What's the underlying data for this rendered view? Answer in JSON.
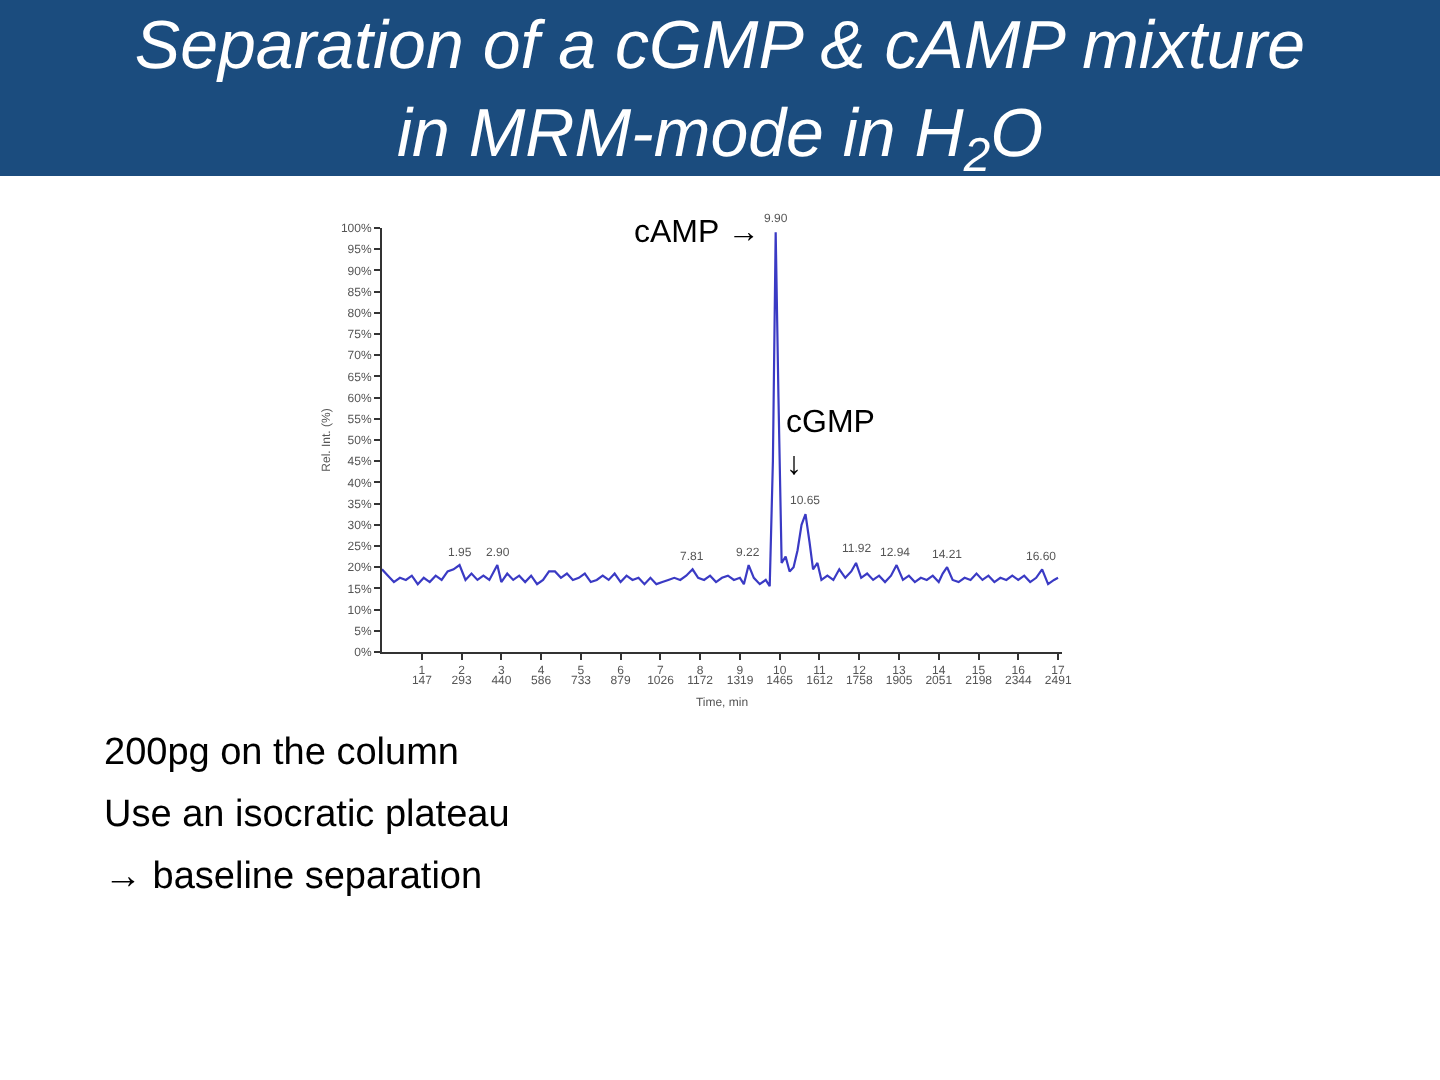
{
  "chart_data": {
    "type": "line",
    "title": "Separation of a cGMP & cAMP mixture\nin MRM-mode in H$_{2}$O",
    "xlabel": "Time, min",
    "ylabel": "Rel. Int. (%)",
    "xlim": [
      0,
      17.1
    ],
    "xticks": [
      1,
      2,
      3,
      4,
      5,
      6,
      7,
      8,
      9,
      10,
      11,
      12,
      13,
      14,
      15,
      16,
      17
    ],
    "x2lim": [
      0,
      2505
    ],
    "x2ticks": [
      147,
      293,
      440,
      586,
      733,
      879,
      1026,
      1172,
      1319,
      1465,
      1612,
      1758,
      1905,
      2051,
      2198,
      2344,
      2491
    ],
    "ylim": [
      0,
      100
    ],
    "yticks": [
      {
        "value": 0,
        "label": "0%"
      },
      {
        "value": 5,
        "label": "5%"
      },
      {
        "value": 10,
        "label": "10%"
      },
      {
        "value": 15,
        "label": "15%"
      },
      {
        "value": 20,
        "label": "20%"
      },
      {
        "value": 25,
        "label": "25%"
      },
      {
        "value": 30,
        "label": "30%"
      },
      {
        "value": 35,
        "label": "35%"
      },
      {
        "value": 40,
        "label": "40%"
      },
      {
        "value": 45,
        "label": "45%"
      },
      {
        "value": 50,
        "label": "50%"
      },
      {
        "value": 55,
        "label": "55%"
      },
      {
        "value": 60,
        "label": "60%"
      },
      {
        "value": 65,
        "label": "65%"
      },
      {
        "value": 70,
        "label": "70%"
      },
      {
        "value": 75,
        "label": "75%"
      },
      {
        "value": 80,
        "label": "80%"
      },
      {
        "value": 85,
        "label": "85%"
      },
      {
        "value": 90,
        "label": "90%"
      },
      {
        "value": 95,
        "label": "95%"
      },
      {
        "value": 100,
        "label": "100%"
      }
    ],
    "series": [
      {
        "color": "#3a3ac4",
        "x": [
          0.0,
          0.15,
          0.3,
          0.45,
          0.6,
          0.75,
          0.9,
          1.05,
          1.2,
          1.35,
          1.5,
          1.65,
          1.8,
          1.95,
          2.1,
          2.25,
          2.4,
          2.55,
          2.7,
          2.9,
          3.0,
          3.15,
          3.3,
          3.45,
          3.6,
          3.75,
          3.9,
          4.05,
          4.2,
          4.35,
          4.5,
          4.65,
          4.8,
          4.95,
          5.1,
          5.25,
          5.4,
          5.55,
          5.7,
          5.85,
          6.0,
          6.15,
          6.3,
          6.45,
          6.6,
          6.75,
          6.9,
          7.05,
          7.2,
          7.35,
          7.5,
          7.65,
          7.81,
          7.95,
          8.1,
          8.25,
          8.4,
          8.55,
          8.7,
          8.85,
          9.0,
          9.1,
          9.22,
          9.35,
          9.5,
          9.65,
          9.75,
          9.83,
          9.9,
          9.97,
          10.05,
          10.15,
          10.25,
          10.35,
          10.45,
          10.55,
          10.65,
          10.75,
          10.84,
          10.95,
          11.05,
          11.2,
          11.35,
          11.5,
          11.65,
          11.8,
          11.92,
          12.05,
          12.2,
          12.35,
          12.5,
          12.65,
          12.8,
          12.94,
          13.1,
          13.25,
          13.4,
          13.55,
          13.7,
          13.85,
          14.0,
          14.1,
          14.21,
          14.35,
          14.5,
          14.65,
          14.8,
          14.95,
          15.1,
          15.25,
          15.4,
          15.55,
          15.7,
          15.85,
          16.0,
          16.15,
          16.3,
          16.45,
          16.6,
          16.75,
          16.9,
          17.0
        ],
        "values": [
          19.5,
          18.0,
          16.5,
          17.5,
          17.0,
          18.0,
          16.0,
          17.5,
          16.5,
          18.0,
          17.0,
          19.0,
          19.5,
          20.5,
          17.0,
          18.5,
          17.0,
          18.0,
          17.0,
          20.5,
          16.5,
          18.5,
          17.0,
          18.0,
          16.5,
          18.0,
          16.0,
          17.0,
          19.0,
          19.0,
          17.5,
          18.5,
          17.0,
          17.5,
          18.5,
          16.5,
          17.0,
          18.0,
          17.0,
          18.5,
          16.5,
          18.0,
          17.0,
          17.5,
          16.0,
          17.5,
          16.0,
          16.5,
          17.0,
          17.5,
          17.0,
          18.0,
          19.5,
          17.5,
          17.0,
          18.0,
          16.5,
          17.5,
          18.0,
          17.0,
          17.5,
          16.0,
          20.5,
          17.5,
          16.0,
          17.0,
          15.5,
          45.0,
          99.0,
          60.0,
          21.0,
          22.5,
          19.0,
          20.0,
          24.0,
          30.0,
          32.5,
          26.0,
          19.5,
          21.0,
          17.0,
          18.0,
          17.0,
          19.5,
          17.5,
          19.0,
          21.0,
          17.5,
          18.5,
          17.0,
          18.0,
          16.5,
          18.0,
          20.5,
          17.0,
          18.0,
          16.5,
          17.5,
          17.0,
          18.0,
          16.5,
          18.5,
          20.0,
          17.0,
          16.5,
          17.5,
          17.0,
          18.5,
          17.0,
          18.0,
          16.5,
          17.5,
          17.0,
          18.0,
          17.0,
          18.0,
          16.5,
          17.5,
          19.5,
          16.0,
          17.0,
          17.5
        ]
      }
    ],
    "annotations": [
      {
        "text": "cAMP →",
        "x": 9.9,
        "y": 99.0
      },
      {
        "text": "cGMP\n↓",
        "x": 10.65,
        "y": 32.5
      },
      {
        "text": "1.95",
        "x": 1.95,
        "y": 20.5
      },
      {
        "text": "2.90",
        "x": 2.9,
        "y": 20.5
      },
      {
        "text": "7.81",
        "x": 7.81,
        "y": 19.5
      },
      {
        "text": "9.22",
        "x": 9.22,
        "y": 20.5
      },
      {
        "text": "9.90",
        "x": 9.9,
        "y": 99.0
      },
      {
        "text": "10.65",
        "x": 10.65,
        "y": 32.5
      },
      {
        "text": "11.92",
        "x": 11.92,
        "y": 21.0
      },
      {
        "text": "12.94",
        "x": 12.94,
        "y": 20.5
      },
      {
        "text": "14.21",
        "x": 14.21,
        "y": 20.0
      },
      {
        "text": "16.60",
        "x": 16.6,
        "y": 19.5
      },
      "200pg on the column",
      "Use an isocratic plateau",
      "→ baseline separation"
    ]
  }
}
